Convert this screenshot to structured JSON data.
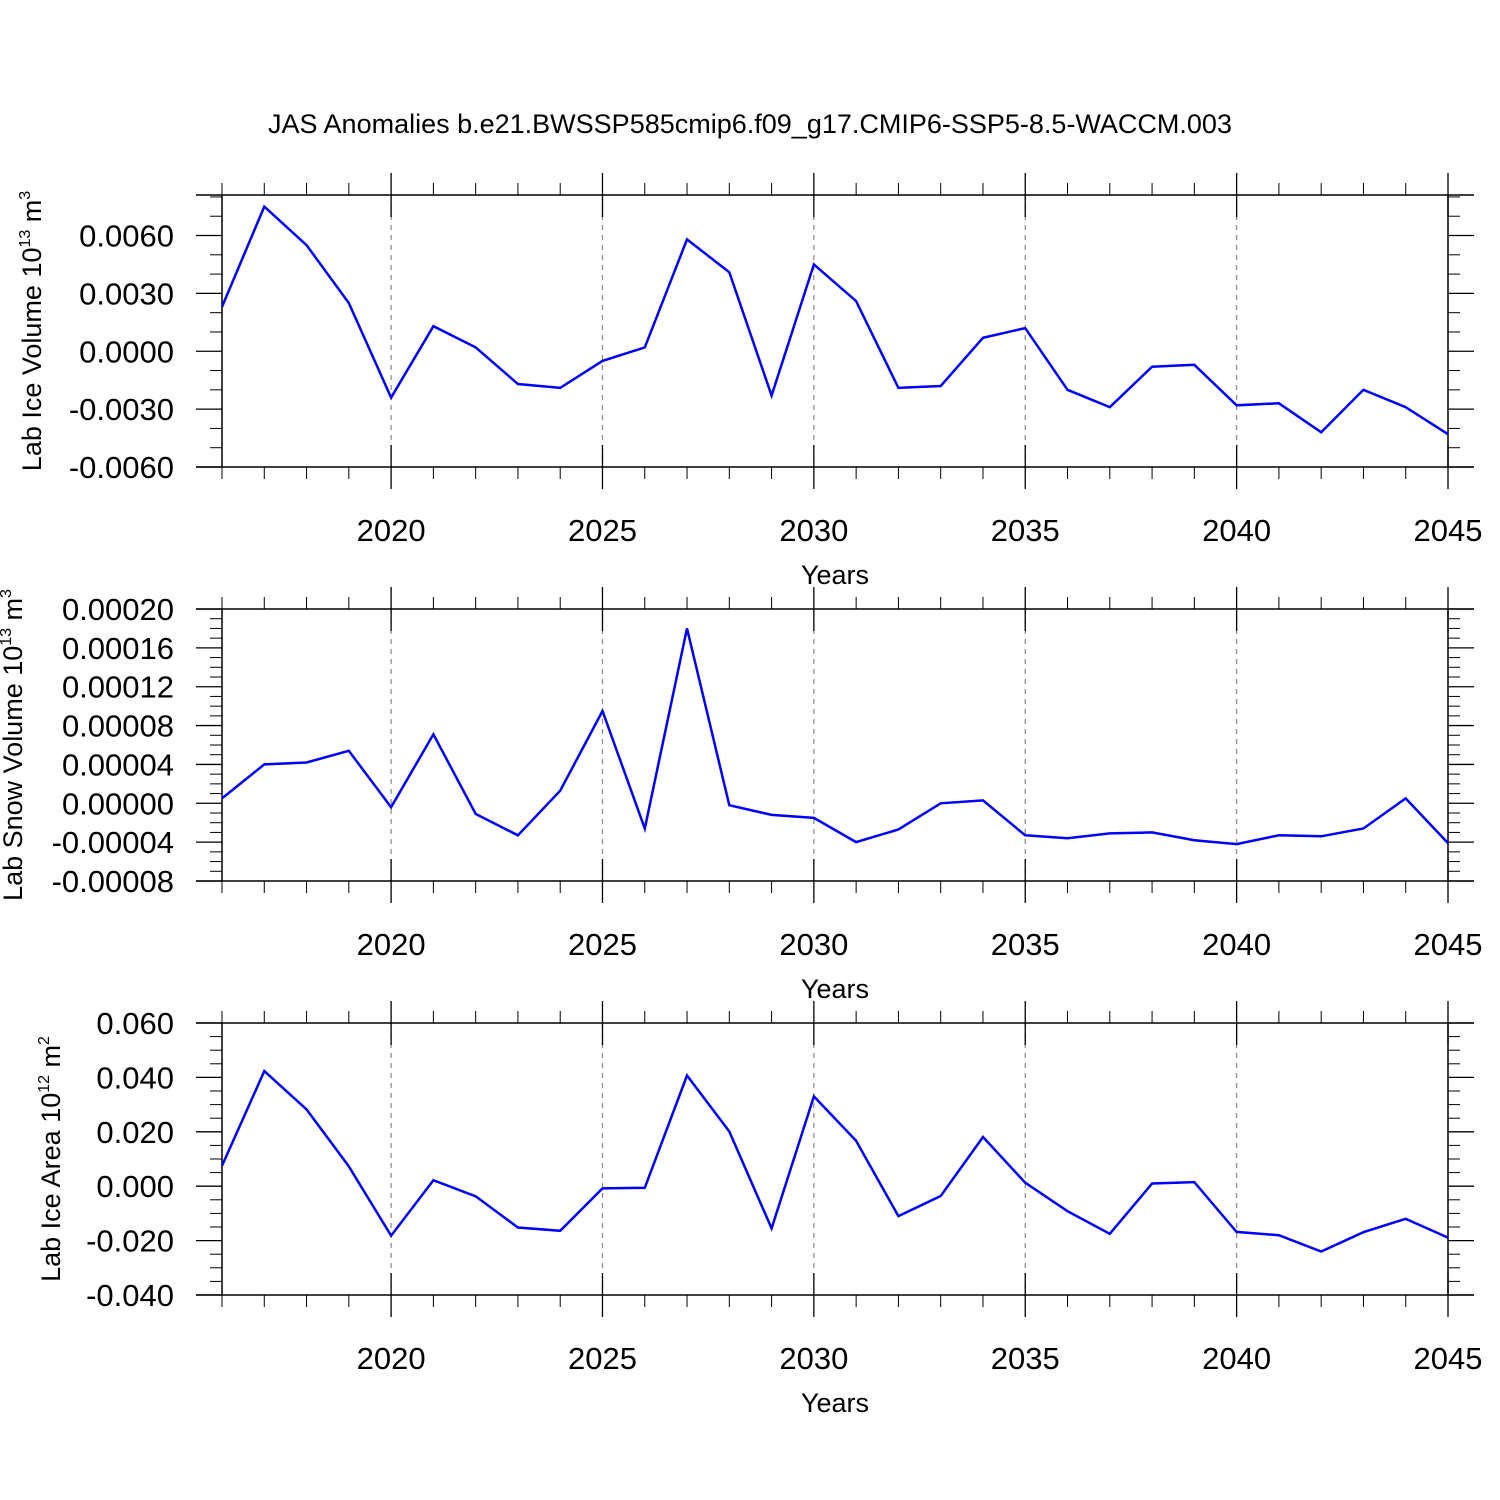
{
  "title": "JAS Anomalies b.e21.BWSSP585cmip6.f09_g17.CMIP6-SSP5-8.5-WACCM.003",
  "colors": {
    "line": "#0000ff",
    "axis": "#000000",
    "grid": "#888888"
  },
  "chart_data": [
    {
      "type": "line",
      "ylabel": "Lab Ice Volume 10",
      "ylabel_sup": "13",
      "ylabel_unit": " m",
      "ylabel_unit_sup": "3",
      "xlabel": "Years",
      "xlim": [
        2016,
        2045
      ],
      "ylim": [
        -0.006,
        0.0081
      ],
      "xticks": [
        "2020",
        "2025",
        "2030",
        "2035",
        "2040",
        "2045"
      ],
      "xtick_values": [
        2020,
        2025,
        2030,
        2035,
        2040,
        2045
      ],
      "yticks": [
        "-0.0060",
        "-0.0030",
        "0.0000",
        "0.0030",
        "0.0060"
      ],
      "ytick_values": [
        -0.006,
        -0.003,
        0.0,
        0.003,
        0.006
      ],
      "y_minor_step": 0.001,
      "grid": "vertical dashed at major x ticks",
      "x": [
        2016,
        2017,
        2018,
        2019,
        2020,
        2021,
        2022,
        2023,
        2024,
        2025,
        2026,
        2027,
        2028,
        2029,
        2030,
        2031,
        2032,
        2033,
        2034,
        2035,
        2036,
        2037,
        2038,
        2039,
        2040,
        2041,
        2042,
        2043,
        2044,
        2045
      ],
      "series": [
        {
          "values": [
            0.0023,
            0.0075,
            0.0055,
            0.0025,
            -0.0024,
            0.0013,
            0.0002,
            -0.0017,
            -0.0019,
            -0.0005,
            0.0002,
            0.0058,
            0.0041,
            -0.0023,
            0.0045,
            0.0026,
            -0.0019,
            -0.0018,
            0.0007,
            0.0012,
            -0.002,
            -0.0029,
            -0.0008,
            -0.0007,
            -0.0028,
            -0.0027,
            -0.0042,
            -0.002,
            -0.0029,
            -0.0043
          ]
        }
      ]
    },
    {
      "type": "line",
      "ylabel": "Lab Snow Volume 10",
      "ylabel_sup": "13",
      "ylabel_unit": " m",
      "ylabel_unit_sup": "3",
      "xlabel": "Years",
      "xlim": [
        2016,
        2045
      ],
      "ylim": [
        -8e-05,
        0.0002
      ],
      "xticks": [
        "2020",
        "2025",
        "2030",
        "2035",
        "2040",
        "2045"
      ],
      "xtick_values": [
        2020,
        2025,
        2030,
        2035,
        2040,
        2045
      ],
      "yticks": [
        "-0.00008",
        "-0.00004",
        "0.00000",
        "0.00004",
        "0.00008",
        "0.00012",
        "0.00016",
        "0.00020"
      ],
      "ytick_values": [
        -8e-05,
        -4e-05,
        0.0,
        4e-05,
        8e-05,
        0.00012,
        0.00016,
        0.0002
      ],
      "y_minor_step": 1e-05,
      "grid": "vertical dashed at major x ticks",
      "x": [
        2016,
        2017,
        2018,
        2019,
        2020,
        2021,
        2022,
        2023,
        2024,
        2025,
        2026,
        2027,
        2028,
        2029,
        2030,
        2031,
        2032,
        2033,
        2034,
        2035,
        2036,
        2037,
        2038,
        2039,
        2040,
        2041,
        2042,
        2043,
        2044,
        2045
      ],
      "series": [
        {
          "values": [
            5e-06,
            4e-05,
            4.2e-05,
            5.4e-05,
            -4e-06,
            7.1e-05,
            -1.1e-05,
            -3.3e-05,
            1.3e-05,
            9.5e-05,
            -2.6e-05,
            0.00018,
            -2e-06,
            -1.2e-05,
            -1.5e-05,
            -4e-05,
            -2.7e-05,
            0.0,
            3e-06,
            -3.3e-05,
            -3.6e-05,
            -3.1e-05,
            -3e-05,
            -3.8e-05,
            -4.2e-05,
            -3.3e-05,
            -3.4e-05,
            -2.6e-05,
            5e-06,
            -4.1e-05
          ]
        }
      ]
    },
    {
      "type": "line",
      "ylabel": "Lab Ice Area 10",
      "ylabel_sup": "12",
      "ylabel_unit": " m",
      "ylabel_unit_sup": "2",
      "xlabel": "Years",
      "xlim": [
        2016,
        2045
      ],
      "ylim": [
        -0.04,
        0.06
      ],
      "xticks": [
        "2020",
        "2025",
        "2030",
        "2035",
        "2040",
        "2045"
      ],
      "xtick_values": [
        2020,
        2025,
        2030,
        2035,
        2040,
        2045
      ],
      "yticks": [
        "-0.040",
        "-0.020",
        "0.000",
        "0.020",
        "0.040",
        "0.060"
      ],
      "ytick_values": [
        -0.04,
        -0.02,
        0.0,
        0.02,
        0.04,
        0.06
      ],
      "y_minor_step": 0.005,
      "grid": "vertical dashed at major x ticks",
      "x": [
        2016,
        2017,
        2018,
        2019,
        2020,
        2021,
        2022,
        2023,
        2024,
        2025,
        2026,
        2027,
        2028,
        2029,
        2030,
        2031,
        2032,
        2033,
        2034,
        2035,
        2036,
        2037,
        2038,
        2039,
        2040,
        2041,
        2042,
        2043,
        2044,
        2045
      ],
      "series": [
        {
          "values": [
            0.0075,
            0.0423,
            0.0282,
            0.0073,
            -0.0182,
            0.0022,
            -0.0037,
            -0.0152,
            -0.0164,
            -0.0008,
            -0.0006,
            0.0407,
            0.0201,
            -0.0155,
            0.033,
            0.0167,
            -0.011,
            -0.0036,
            0.0181,
            0.0013,
            -0.0092,
            -0.0175,
            0.001,
            0.0015,
            -0.0168,
            -0.018,
            -0.024,
            -0.0169,
            -0.012,
            -0.0189
          ]
        }
      ]
    }
  ]
}
